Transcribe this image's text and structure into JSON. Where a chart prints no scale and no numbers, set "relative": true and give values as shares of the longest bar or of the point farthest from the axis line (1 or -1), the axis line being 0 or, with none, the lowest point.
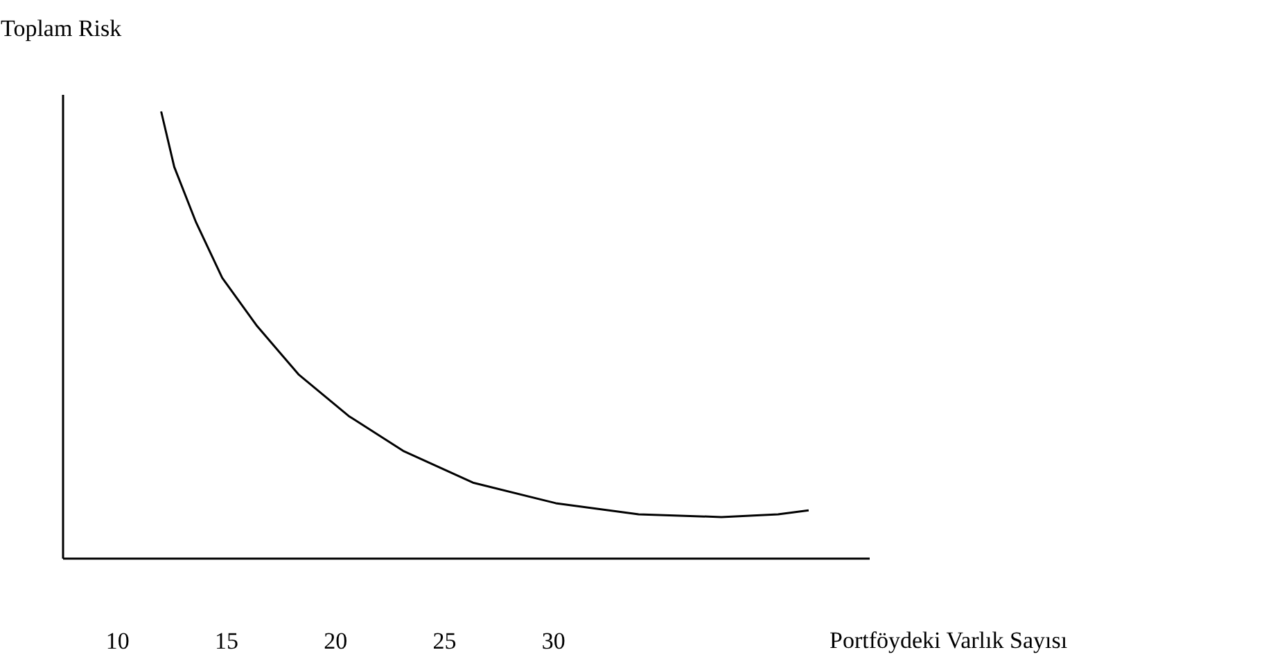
{
  "chart_data": {
    "type": "line",
    "relative": true,
    "xlabel": "Portföydeki Varlık Sayısı",
    "ylabel": "Toplam Risk",
    "xlim": [
      7.5,
      44.5
    ],
    "xticks": [
      10,
      15,
      20,
      25,
      30
    ],
    "grid": false,
    "marker": "none",
    "line_style": "solid",
    "series": [
      {
        "color": "#000000",
        "x": [
          12.0,
          12.6,
          13.6,
          14.8,
          16.4,
          18.3,
          20.6,
          23.1,
          26.3,
          30.1,
          33.9,
          37.7,
          40.3,
          41.7
        ],
        "values": [
          1.0,
          0.876,
          0.752,
          0.628,
          0.52,
          0.412,
          0.319,
          0.241,
          0.17,
          0.124,
          0.099,
          0.093,
          0.099,
          0.108
        ]
      }
    ]
  }
}
